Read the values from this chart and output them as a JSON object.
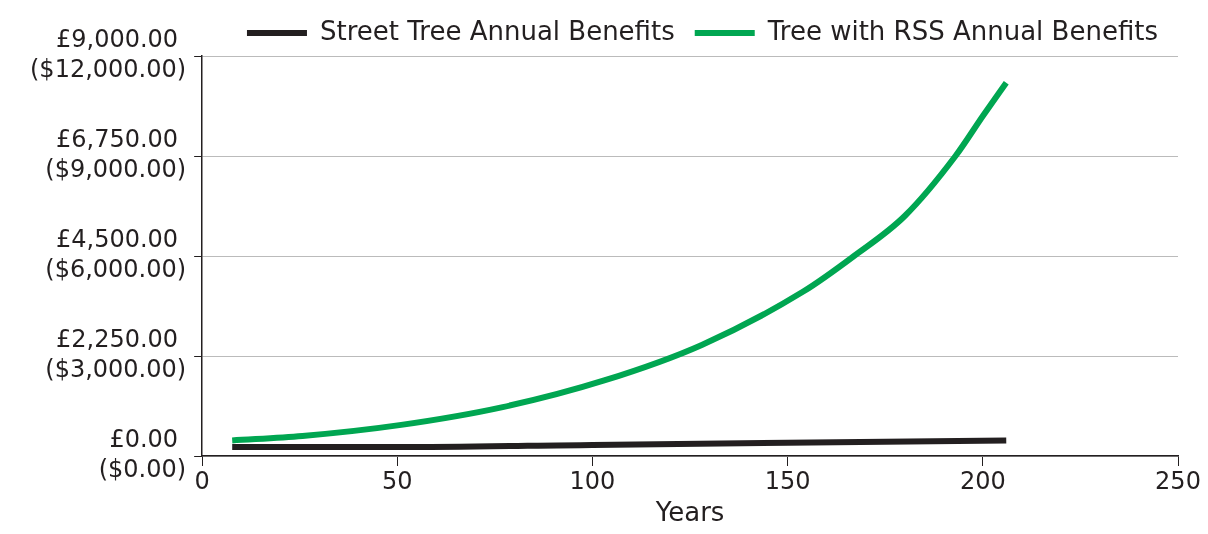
{
  "chart_data": {
    "type": "line",
    "xlabel": "Years",
    "legend": "top right",
    "grid": "y",
    "marker": "none",
    "line_style": "solid",
    "xlim": [
      0,
      250
    ],
    "xticks": [
      0,
      50,
      100,
      150,
      200,
      250
    ],
    "ylim": [
      0,
      9000
    ],
    "yticks": [
      {
        "value": 0,
        "label": "£0.00"
      },
      {
        "value": 2250,
        "label": "£2,250.00"
      },
      {
        "value": 4500,
        "label": "£4,500.00"
      },
      {
        "value": 6750,
        "label": "£6,750.00"
      },
      {
        "value": 9000,
        "label": "£9,000.00"
      }
    ],
    "y2lim": [
      0,
      12000
    ],
    "y2ticks": [
      {
        "value": 0,
        "label": "($0.00)"
      },
      {
        "value": 3000,
        "label": "($3,000.00)"
      },
      {
        "value": 6000,
        "label": "($6,000.00)"
      },
      {
        "value": 9000,
        "label": "($9,000.00)"
      },
      {
        "value": 12000,
        "label": "($12,000.00)"
      }
    ],
    "series": [
      {
        "name": "Street Tree Annual Benefits",
        "color": "#231f20",
        "x": [
          7.7,
          50,
          100,
          150,
          206
        ],
        "values": [
          200,
          200,
          250,
          300,
          350
        ]
      },
      {
        "name": "Tree with RSS Annual Benefits",
        "color": "#00a651",
        "x": [
          7.7,
          25.7,
          51,
          77,
          103,
          128,
          154,
          167,
          180,
          193,
          200,
          206
        ],
        "values": [
          350,
          450,
          700,
          1100,
          1700,
          2500,
          3700,
          4500,
          5400,
          6750,
          7650,
          8400
        ]
      }
    ]
  }
}
